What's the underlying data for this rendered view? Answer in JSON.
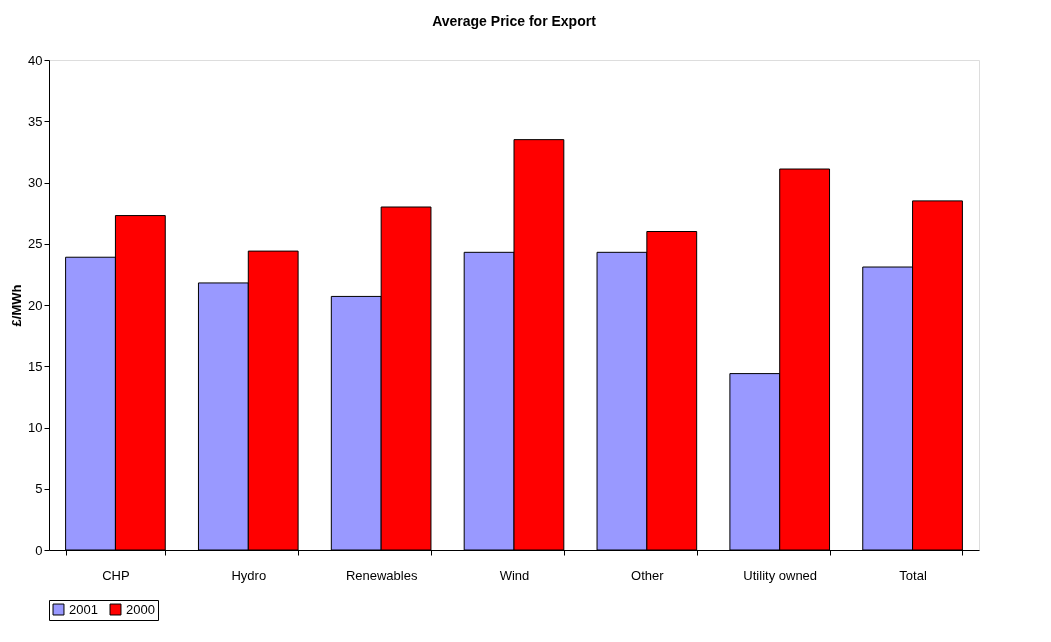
{
  "chart_data": {
    "type": "bar",
    "title": "Average Price for Export",
    "ylabel": "£/MWh",
    "categories": [
      "CHP",
      "Hydro",
      "Renewables",
      "Wind",
      "Other",
      "Utility owned",
      "Total"
    ],
    "series": [
      {
        "name": "2001",
        "color": "#9999ff",
        "values": [
          23.9,
          21.8,
          20.7,
          24.3,
          24.3,
          14.4,
          23.1
        ]
      },
      {
        "name": "2000",
        "color": "#ff0000",
        "values": [
          27.3,
          24.4,
          28.0,
          33.5,
          26.0,
          31.1,
          28.5
        ]
      }
    ],
    "ylim": [
      0,
      40
    ],
    "yticks": [
      0,
      5,
      10,
      15,
      20,
      25,
      30,
      35,
      40
    ],
    "grid": false,
    "legend": "bottom"
  }
}
